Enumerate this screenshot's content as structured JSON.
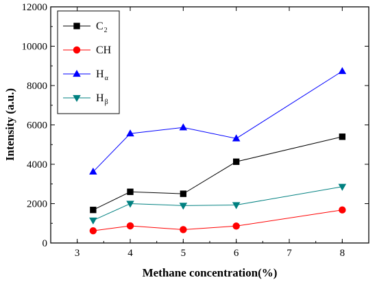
{
  "chart_data": {
    "type": "line",
    "xlabel": "Methane concentration(%)",
    "ylabel": "Intensity (a.u.)",
    "xlim": [
      2.5,
      8.5
    ],
    "ylim": [
      0,
      12000
    ],
    "x_ticks": [
      3,
      4,
      5,
      6,
      7,
      8
    ],
    "y_ticks": [
      0,
      2000,
      4000,
      6000,
      8000,
      10000,
      12000
    ],
    "grid": false,
    "legend_position": "top-left",
    "x": [
      3.3,
      4,
      5,
      6,
      8
    ],
    "series": [
      {
        "name": "C2",
        "name_main": "C",
        "name_sub": "2",
        "marker": "square",
        "color": "#000000",
        "values": [
          1680,
          2600,
          2500,
          4130,
          5400
        ]
      },
      {
        "name": "CH",
        "name_main": "CH",
        "name_sub": "",
        "marker": "circle",
        "color": "#ff0000",
        "values": [
          620,
          870,
          680,
          860,
          1680
        ]
      },
      {
        "name": "Hα",
        "name_main": "H",
        "name_sub": "α",
        "marker": "triangle-up",
        "color": "#0000ff",
        "values": [
          3620,
          5560,
          5870,
          5310,
          8730
        ]
      },
      {
        "name": "Hβ",
        "name_main": "H",
        "name_sub": "β",
        "marker": "triangle-down",
        "color": "#008080",
        "values": [
          1150,
          2000,
          1900,
          1930,
          2860
        ]
      }
    ]
  }
}
